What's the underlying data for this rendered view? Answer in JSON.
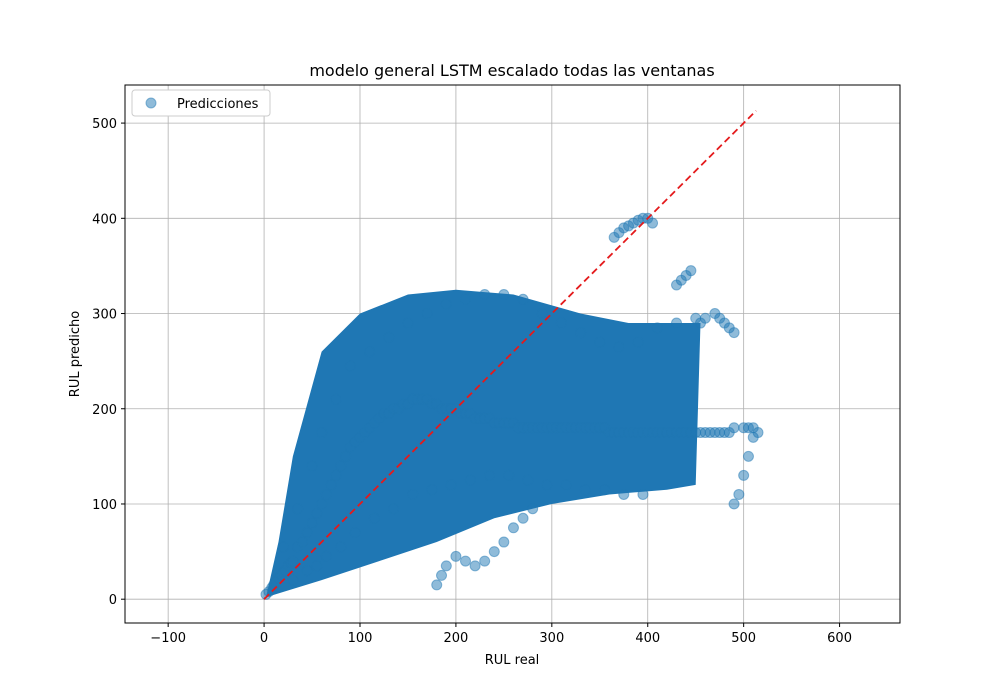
{
  "chart_data": {
    "type": "scatter",
    "title": "modelo general LSTM escalado todas las ventanas",
    "xlabel": "RUL real",
    "ylabel": "RUL predicho",
    "xlim": [
      -145,
      663
    ],
    "ylim": [
      -25,
      540
    ],
    "xticks": [
      -100,
      0,
      100,
      200,
      300,
      400,
      500,
      600
    ],
    "yticks": [
      0,
      100,
      200,
      300,
      400,
      500
    ],
    "xtick_labels": [
      "−100",
      "0",
      "100",
      "200",
      "300",
      "400",
      "500",
      "600"
    ],
    "ytick_labels": [
      "0",
      "100",
      "200",
      "300",
      "400",
      "500"
    ],
    "grid": true,
    "legend": {
      "position": "top-left",
      "entries": [
        "Predicciones"
      ]
    },
    "colors": {
      "points": "#1f77b4",
      "reference_line": "#e41a1c",
      "grid": "#b0b0b0"
    },
    "series": [
      {
        "name": "Predicciones",
        "style": "scatter",
        "x": [
          2,
          5,
          8,
          10,
          12,
          15,
          18,
          20,
          22,
          25,
          28,
          30,
          35,
          40,
          45,
          50,
          55,
          60,
          65,
          70,
          75,
          80,
          85,
          90,
          95,
          100,
          105,
          110,
          115,
          120,
          125,
          130,
          135,
          140,
          145,
          150,
          155,
          160,
          165,
          170,
          175,
          180,
          185,
          190,
          195,
          200,
          205,
          210,
          215,
          220,
          225,
          230,
          235,
          240,
          245,
          250,
          255,
          260,
          265,
          270,
          275,
          280,
          285,
          290,
          295,
          300,
          305,
          310,
          315,
          320,
          325,
          330,
          335,
          340,
          345,
          350,
          355,
          360,
          365,
          370,
          375,
          380,
          385,
          390,
          395,
          400,
          405,
          410,
          415,
          420,
          425,
          430,
          435,
          440,
          445,
          450,
          455,
          460,
          465,
          470,
          475,
          480,
          485,
          490,
          500,
          505,
          510,
          515,
          20,
          35,
          50,
          60,
          75,
          90,
          110,
          130,
          150,
          170,
          190,
          210,
          230,
          250,
          270,
          290,
          310,
          330,
          350,
          370,
          390,
          410,
          430,
          450,
          30,
          45,
          55,
          65,
          80,
          95,
          115,
          135,
          155,
          175,
          195,
          215,
          235,
          255,
          275,
          295,
          315,
          335,
          355,
          375,
          395,
          180,
          185,
          190,
          200,
          210,
          220,
          230,
          240,
          250,
          260,
          270,
          280,
          365,
          370,
          375,
          380,
          385,
          390,
          395,
          400,
          405,
          430,
          435,
          440,
          445,
          455,
          460,
          470,
          475,
          480,
          485,
          490,
          490,
          495,
          500,
          505,
          510
        ],
        "y": [
          5,
          8,
          12,
          15,
          18,
          22,
          25,
          28,
          30,
          35,
          38,
          40,
          55,
          60,
          70,
          80,
          90,
          100,
          110,
          120,
          130,
          140,
          150,
          160,
          165,
          170,
          175,
          180,
          185,
          190,
          195,
          195,
          200,
          200,
          205,
          205,
          210,
          210,
          210,
          210,
          205,
          205,
          200,
          200,
          200,
          200,
          195,
          195,
          195,
          190,
          190,
          190,
          190,
          185,
          185,
          185,
          185,
          185,
          180,
          180,
          180,
          180,
          180,
          180,
          180,
          180,
          180,
          180,
          180,
          180,
          180,
          180,
          180,
          180,
          180,
          180,
          180,
          175,
          175,
          175,
          175,
          175,
          175,
          175,
          175,
          175,
          175,
          175,
          175,
          175,
          175,
          175,
          175,
          175,
          175,
          175,
          175,
          175,
          175,
          175,
          175,
          175,
          175,
          180,
          180,
          180,
          180,
          175,
          55,
          95,
          140,
          175,
          210,
          245,
          260,
          275,
          290,
          300,
          310,
          315,
          320,
          320,
          315,
          300,
          290,
          280,
          270,
          265,
          270,
          285,
          290,
          295,
          20,
          30,
          35,
          45,
          55,
          70,
          85,
          95,
          110,
          115,
          120,
          125,
          130,
          130,
          125,
          120,
          120,
          115,
          115,
          110,
          110,
          15,
          25,
          35,
          45,
          40,
          35,
          40,
          50,
          60,
          75,
          85,
          95,
          380,
          385,
          390,
          392,
          395,
          398,
          400,
          400,
          395,
          330,
          335,
          340,
          345,
          290,
          295,
          300,
          295,
          290,
          285,
          280,
          100,
          110,
          130,
          150,
          170
        ]
      },
      {
        "name": "",
        "style": "dashed-line",
        "x": [
          0,
          513
        ],
        "y": [
          0,
          513
        ]
      }
    ]
  }
}
